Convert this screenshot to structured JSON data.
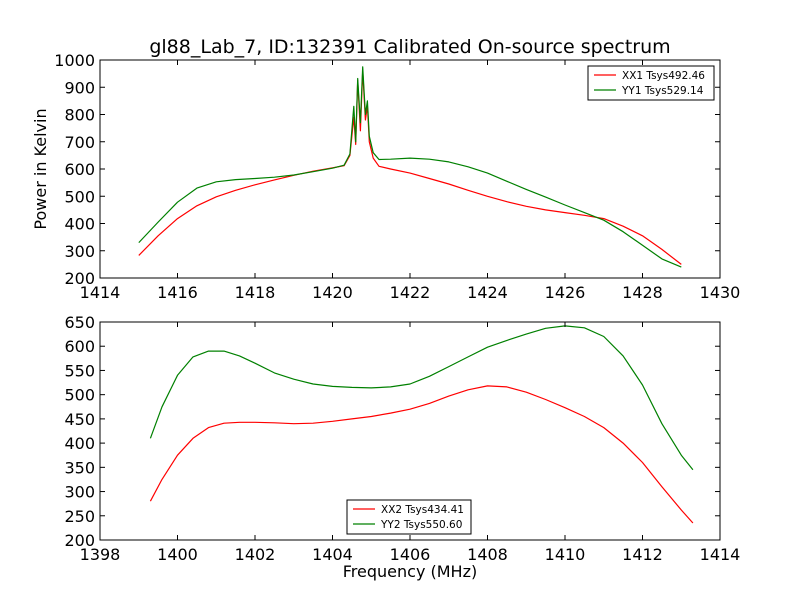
{
  "figure": {
    "title": "gl88_Lab_7, ID:132391 Calibrated On-source spectrum"
  },
  "chart_data": [
    {
      "type": "line",
      "title": "gl88_Lab_7, ID:132391 Calibrated On-source spectrum",
      "xlabel": "",
      "ylabel": "Power in Kelvin",
      "xlim": [
        1414,
        1430
      ],
      "ylim": [
        200,
        1000
      ],
      "xticks": [
        1414,
        1416,
        1418,
        1420,
        1422,
        1424,
        1426,
        1428,
        1430
      ],
      "yticks": [
        200,
        300,
        400,
        500,
        600,
        700,
        800,
        900,
        1000
      ],
      "grid": false,
      "legend_position": "top-right",
      "series": [
        {
          "name": "XX1 Tsys492.46",
          "color": "#ff0000",
          "x": [
            1415.0,
            1415.5,
            1416.0,
            1416.5,
            1417.0,
            1417.5,
            1418.0,
            1418.5,
            1419.0,
            1419.5,
            1420.0,
            1420.3,
            1420.45,
            1420.55,
            1420.6,
            1420.65,
            1420.72,
            1420.78,
            1420.85,
            1420.9,
            1420.95,
            1421.05,
            1421.2,
            1421.5,
            1422.0,
            1422.5,
            1423.0,
            1423.5,
            1424.0,
            1424.5,
            1425.0,
            1425.5,
            1426.0,
            1426.5,
            1427.0,
            1427.5,
            1428.0,
            1428.5,
            1429.0
          ],
          "y": [
            283,
            355,
            418,
            465,
            498,
            522,
            542,
            560,
            577,
            592,
            604,
            612,
            650,
            790,
            690,
            925,
            740,
            960,
            780,
            830,
            700,
            640,
            610,
            600,
            585,
            565,
            545,
            522,
            500,
            480,
            463,
            450,
            440,
            430,
            418,
            390,
            355,
            305,
            250
          ]
        },
        {
          "name": "YY1 Tsys529.14",
          "color": "#008000",
          "x": [
            1415.0,
            1415.5,
            1416.0,
            1416.5,
            1417.0,
            1417.5,
            1418.0,
            1418.5,
            1419.0,
            1419.5,
            1420.0,
            1420.3,
            1420.45,
            1420.55,
            1420.6,
            1420.65,
            1420.72,
            1420.78,
            1420.85,
            1420.9,
            1420.95,
            1421.05,
            1421.2,
            1421.5,
            1422.0,
            1422.5,
            1423.0,
            1423.5,
            1424.0,
            1424.5,
            1425.0,
            1425.5,
            1426.0,
            1426.5,
            1427.0,
            1427.5,
            1428.0,
            1428.5,
            1429.0
          ],
          "y": [
            330,
            405,
            478,
            530,
            553,
            561,
            565,
            570,
            578,
            590,
            603,
            614,
            655,
            830,
            700,
            932,
            770,
            975,
            800,
            850,
            720,
            660,
            635,
            636,
            640,
            636,
            626,
            608,
            585,
            555,
            525,
            497,
            468,
            440,
            412,
            370,
            320,
            270,
            240
          ]
        }
      ]
    },
    {
      "type": "line",
      "title": "",
      "xlabel": "Frequency (MHz)",
      "ylabel": "",
      "xlim": [
        1398,
        1414
      ],
      "ylim": [
        200,
        650
      ],
      "xticks": [
        1398,
        1400,
        1402,
        1404,
        1406,
        1408,
        1410,
        1412,
        1414
      ],
      "yticks": [
        200,
        250,
        300,
        350,
        400,
        450,
        500,
        550,
        600,
        650
      ],
      "grid": false,
      "legend_position": "bottom-center",
      "series": [
        {
          "name": "XX2 Tsys434.41",
          "color": "#ff0000",
          "x": [
            1399.3,
            1399.6,
            1400.0,
            1400.4,
            1400.8,
            1401.2,
            1401.6,
            1402.0,
            1402.5,
            1403.0,
            1403.5,
            1404.0,
            1404.5,
            1405.0,
            1405.5,
            1406.0,
            1406.5,
            1407.0,
            1407.5,
            1408.0,
            1408.5,
            1409.0,
            1409.5,
            1410.0,
            1410.5,
            1411.0,
            1411.5,
            1412.0,
            1412.5,
            1413.0,
            1413.3
          ],
          "y": [
            280,
            325,
            375,
            410,
            432,
            441,
            443,
            443,
            442,
            440,
            441,
            445,
            450,
            455,
            462,
            470,
            482,
            497,
            510,
            518,
            516,
            505,
            490,
            473,
            455,
            432,
            400,
            360,
            310,
            262,
            235
          ]
        },
        {
          "name": "YY2 Tsys550.60",
          "color": "#008000",
          "x": [
            1399.3,
            1399.6,
            1400.0,
            1400.4,
            1400.8,
            1401.2,
            1401.6,
            1402.0,
            1402.5,
            1403.0,
            1403.5,
            1404.0,
            1404.5,
            1405.0,
            1405.5,
            1406.0,
            1406.5,
            1407.0,
            1407.5,
            1408.0,
            1408.5,
            1409.0,
            1409.5,
            1410.0,
            1410.5,
            1411.0,
            1411.5,
            1412.0,
            1412.5,
            1413.0,
            1413.3
          ],
          "y": [
            410,
            475,
            540,
            578,
            590,
            590,
            580,
            565,
            545,
            532,
            522,
            517,
            515,
            514,
            516,
            522,
            538,
            558,
            578,
            598,
            612,
            625,
            637,
            642,
            638,
            620,
            580,
            520,
            440,
            375,
            345
          ]
        }
      ]
    }
  ]
}
